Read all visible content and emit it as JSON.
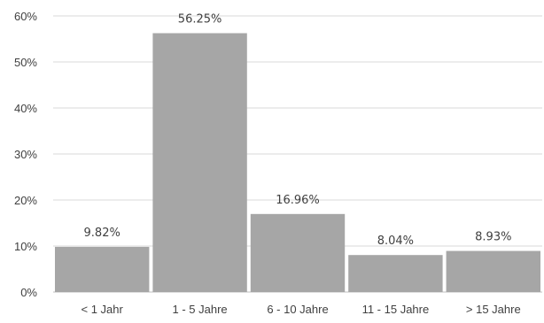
{
  "chart_data": {
    "type": "bar",
    "categories": [
      "< 1 Jahr",
      "1 - 5 Jahre",
      "6 - 10 Jahre",
      "11 - 15 Jahre",
      "> 15 Jahre"
    ],
    "values": [
      9.82,
      56.25,
      16.96,
      8.04,
      8.93
    ],
    "data_labels": [
      "9.82%",
      "56.25%",
      "16.96%",
      "8.04%",
      "8.93%"
    ],
    "title": "",
    "xlabel": "",
    "ylabel": "",
    "ylim": [
      0,
      60
    ],
    "yticks": [
      0,
      10,
      20,
      30,
      40,
      50,
      60
    ],
    "ytick_labels": [
      "0%",
      "10%",
      "20%",
      "30%",
      "40%",
      "50%",
      "60%"
    ],
    "grid": true,
    "legend": "none",
    "colors": {
      "bar": "#a6a6a6",
      "grid": "#d9d9d9",
      "text": "#404040"
    }
  }
}
